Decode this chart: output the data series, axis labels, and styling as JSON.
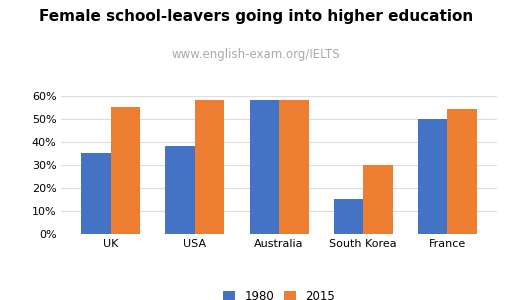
{
  "title": "Female school-leavers going into higher education",
  "subtitle": "www.english-exam.org/IELTS",
  "categories": [
    "UK",
    "USA",
    "Australia",
    "South Korea",
    "France"
  ],
  "values_1980": [
    35,
    38,
    58,
    15,
    50
  ],
  "values_2015": [
    55,
    58,
    58,
    30,
    54
  ],
  "color_1980": "#4472c4",
  "color_2015": "#ed7d31",
  "legend_labels": [
    "1980",
    "2015"
  ],
  "ylim": [
    0,
    65
  ],
  "yticks": [
    0,
    10,
    20,
    30,
    40,
    50,
    60
  ],
  "bar_width": 0.35,
  "title_fontsize": 11,
  "subtitle_fontsize": 8.5,
  "subtitle_color": "#aaaaaa",
  "tick_fontsize": 8,
  "legend_fontsize": 8.5,
  "background_color": "#ffffff",
  "grid_color": "#dddddd"
}
